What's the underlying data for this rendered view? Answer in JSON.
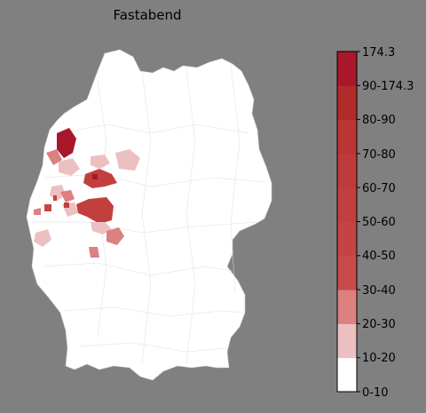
{
  "title": "Fastabend",
  "colorbar": {
    "top_label": "174.3",
    "tick_labels": [
      "90-174.3",
      "80-90",
      "70-80",
      "60-70",
      "50-60",
      "40-50",
      "30-40",
      "20-30",
      "10-20",
      "0-10"
    ],
    "colors_bottom_to_top": [
      "#ffffff",
      "#ecc0c0",
      "#dc8080",
      "#c84a4a",
      "#c44444",
      "#c23f3f",
      "#bf3a3a",
      "#bd3434",
      "#b32a2a",
      "#a8182a"
    ]
  },
  "colors": {
    "background": "#808080",
    "land": "#ffffff",
    "border": "#cccccc"
  }
}
